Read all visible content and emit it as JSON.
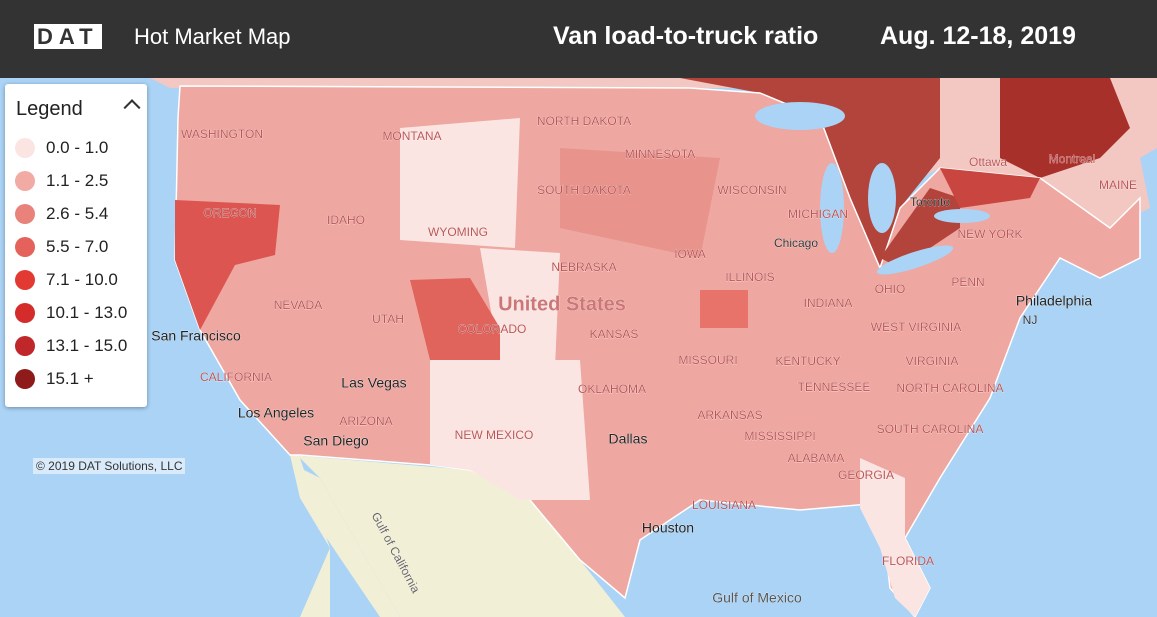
{
  "header": {
    "logo": "DAT",
    "title": "Hot Market Map",
    "metric": "Van load-to-truck ratio",
    "dates": "Aug. 12-18, 2019"
  },
  "legend": {
    "title": "Legend",
    "items": [
      {
        "label": "0.0 - 1.0",
        "color": "#fbe5e3"
      },
      {
        "label": "1.1 - 2.5",
        "color": "#f2aaa5"
      },
      {
        "label": "2.6 - 5.4",
        "color": "#e9827b"
      },
      {
        "label": "5.5 - 7.0",
        "color": "#e4625b"
      },
      {
        "label": "7.1 - 10.0",
        "color": "#e23a33"
      },
      {
        "label": "10.1 - 13.0",
        "color": "#d42b2b"
      },
      {
        "label": "13.1 - 15.0",
        "color": "#c0272a"
      },
      {
        "label": "15.1 +",
        "color": "#8f1a1a"
      }
    ]
  },
  "map": {
    "labels": [
      "WASHINGTON",
      "MONTANA",
      "NORTH DAKOTA",
      "MINNESOTA",
      "IDAHO",
      "OREGON",
      "WYOMING",
      "SOUTH DAKOTA",
      "WISCONSIN",
      "MICHIGAN",
      "NEBRASKA",
      "IOWA",
      "Chicago",
      "Toronto",
      "Ottawa",
      "Montreal",
      "MAINE",
      "NEW YORK",
      "UTAH",
      "COLORADO",
      "United States",
      "KANSAS",
      "ILLINOIS",
      "INDIANA",
      "OHIO",
      "PENN",
      "Philadelphia",
      "NJ",
      "NEVADA",
      "San Francisco",
      "CALIFORNIA",
      "Las Vegas",
      "Los Angeles",
      "San Diego",
      "ARIZONA",
      "NEW MEXICO",
      "OKLAHOMA",
      "ARKANSAS",
      "TENNESSEE",
      "MISSISSIPPI",
      "ALABAMA",
      "GEORGIA",
      "Dallas",
      "LOUISIANA",
      "Houston",
      "FLORIDA",
      "KENTUCKY",
      "MISSOURI",
      "WEST VIRGINIA",
      "VIRGINIA",
      "NORTH CAROLINA",
      "SOUTH CAROLINA",
      "Gulf of California",
      "Gulf of Mexico"
    ],
    "copyright": "© 2019 DAT Solutions, LLC"
  }
}
